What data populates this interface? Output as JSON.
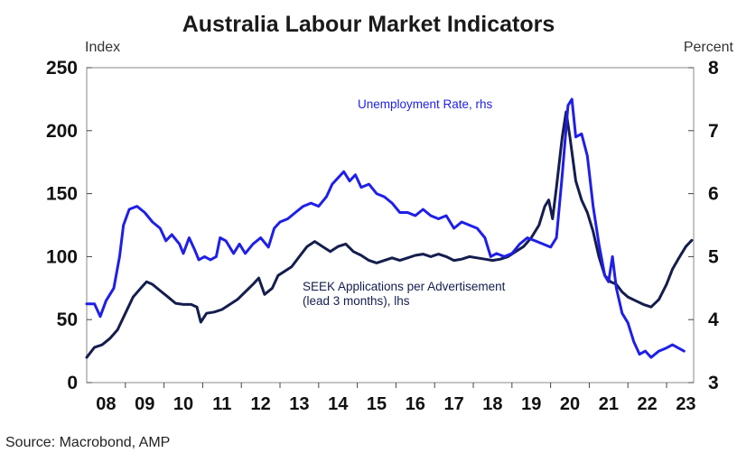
{
  "chart_data": {
    "type": "line",
    "title": "Australia Labour Market Indicators",
    "ylabel_left": "Index",
    "ylabel_right": "Percent",
    "ylim_left": [
      0,
      250
    ],
    "ylim_right": [
      3,
      8
    ],
    "yticks_left": [
      "0",
      "50",
      "100",
      "150",
      "200",
      "250"
    ],
    "yticks_right": [
      "3",
      "4",
      "5",
      "6",
      "7",
      "8"
    ],
    "xlim": [
      2008.0,
      2023.7
    ],
    "xticks": [
      "08",
      "09",
      "10",
      "11",
      "12",
      "13",
      "14",
      "15",
      "16",
      "17",
      "18",
      "19",
      "20",
      "21",
      "22",
      "23"
    ],
    "series": [
      {
        "name": "Unemployment Rate, rhs",
        "axis": "right",
        "color": "#1f1fe8",
        "points": [
          [
            2008.0,
            4.25
          ],
          [
            2008.2,
            4.25
          ],
          [
            2008.35,
            4.05
          ],
          [
            2008.5,
            4.3
          ],
          [
            2008.7,
            4.5
          ],
          [
            2008.85,
            5.0
          ],
          [
            2008.95,
            5.5
          ],
          [
            2009.1,
            5.75
          ],
          [
            2009.3,
            5.8
          ],
          [
            2009.5,
            5.7
          ],
          [
            2009.7,
            5.55
          ],
          [
            2009.9,
            5.45
          ],
          [
            2010.05,
            5.25
          ],
          [
            2010.2,
            5.35
          ],
          [
            2010.4,
            5.2
          ],
          [
            2010.5,
            5.05
          ],
          [
            2010.65,
            5.3
          ],
          [
            2010.8,
            5.1
          ],
          [
            2010.9,
            4.95
          ],
          [
            2011.05,
            5.0
          ],
          [
            2011.2,
            4.95
          ],
          [
            2011.35,
            5.0
          ],
          [
            2011.45,
            5.3
          ],
          [
            2011.6,
            5.25
          ],
          [
            2011.8,
            5.05
          ],
          [
            2011.95,
            5.2
          ],
          [
            2012.1,
            5.05
          ],
          [
            2012.3,
            5.2
          ],
          [
            2012.5,
            5.3
          ],
          [
            2012.7,
            5.15
          ],
          [
            2012.85,
            5.45
          ],
          [
            2013.0,
            5.55
          ],
          [
            2013.2,
            5.6
          ],
          [
            2013.4,
            5.7
          ],
          [
            2013.6,
            5.8
          ],
          [
            2013.8,
            5.85
          ],
          [
            2014.0,
            5.8
          ],
          [
            2014.2,
            5.95
          ],
          [
            2014.35,
            6.15
          ],
          [
            2014.5,
            6.25
          ],
          [
            2014.65,
            6.35
          ],
          [
            2014.8,
            6.2
          ],
          [
            2014.95,
            6.3
          ],
          [
            2015.1,
            6.1
          ],
          [
            2015.3,
            6.15
          ],
          [
            2015.5,
            6.0
          ],
          [
            2015.7,
            5.95
          ],
          [
            2015.9,
            5.85
          ],
          [
            2016.1,
            5.7
          ],
          [
            2016.3,
            5.7
          ],
          [
            2016.5,
            5.65
          ],
          [
            2016.7,
            5.75
          ],
          [
            2016.9,
            5.65
          ],
          [
            2017.1,
            5.6
          ],
          [
            2017.3,
            5.65
          ],
          [
            2017.5,
            5.45
          ],
          [
            2017.7,
            5.55
          ],
          [
            2017.9,
            5.5
          ],
          [
            2018.1,
            5.45
          ],
          [
            2018.3,
            5.3
          ],
          [
            2018.45,
            5.0
          ],
          [
            2018.6,
            5.05
          ],
          [
            2018.8,
            5.0
          ],
          [
            2019.0,
            5.05
          ],
          [
            2019.2,
            5.2
          ],
          [
            2019.4,
            5.3
          ],
          [
            2019.6,
            5.25
          ],
          [
            2019.8,
            5.2
          ],
          [
            2020.0,
            5.15
          ],
          [
            2020.15,
            5.3
          ],
          [
            2020.3,
            6.3
          ],
          [
            2020.45,
            7.4
          ],
          [
            2020.55,
            7.5
          ],
          [
            2020.65,
            6.9
          ],
          [
            2020.8,
            6.95
          ],
          [
            2020.95,
            6.6
          ],
          [
            2021.1,
            5.8
          ],
          [
            2021.25,
            5.2
          ],
          [
            2021.4,
            4.7
          ],
          [
            2021.5,
            4.6
          ],
          [
            2021.6,
            5.0
          ],
          [
            2021.7,
            4.5
          ],
          [
            2021.85,
            4.1
          ],
          [
            2022.0,
            3.95
          ],
          [
            2022.15,
            3.65
          ],
          [
            2022.3,
            3.45
          ],
          [
            2022.45,
            3.5
          ],
          [
            2022.6,
            3.4
          ],
          [
            2022.8,
            3.5
          ],
          [
            2023.0,
            3.55
          ],
          [
            2023.15,
            3.6
          ],
          [
            2023.3,
            3.55
          ],
          [
            2023.45,
            3.5
          ]
        ]
      },
      {
        "name": "SEEK Applications per Advertisement (lead 3 months), lhs",
        "axis": "left",
        "color": "#141d4d",
        "points": [
          [
            2008.0,
            20
          ],
          [
            2008.2,
            28
          ],
          [
            2008.4,
            30
          ],
          [
            2008.6,
            35
          ],
          [
            2008.8,
            42
          ],
          [
            2009.0,
            55
          ],
          [
            2009.2,
            68
          ],
          [
            2009.4,
            75
          ],
          [
            2009.55,
            80
          ],
          [
            2009.7,
            78
          ],
          [
            2009.9,
            73
          ],
          [
            2010.1,
            68
          ],
          [
            2010.3,
            63
          ],
          [
            2010.5,
            62
          ],
          [
            2010.7,
            62
          ],
          [
            2010.85,
            60
          ],
          [
            2010.95,
            48
          ],
          [
            2011.1,
            55
          ],
          [
            2011.3,
            56
          ],
          [
            2011.5,
            58
          ],
          [
            2011.7,
            62
          ],
          [
            2011.9,
            66
          ],
          [
            2012.1,
            72
          ],
          [
            2012.3,
            78
          ],
          [
            2012.45,
            83
          ],
          [
            2012.6,
            70
          ],
          [
            2012.8,
            75
          ],
          [
            2012.95,
            85
          ],
          [
            2013.1,
            88
          ],
          [
            2013.3,
            92
          ],
          [
            2013.5,
            100
          ],
          [
            2013.7,
            108
          ],
          [
            2013.9,
            112
          ],
          [
            2014.1,
            108
          ],
          [
            2014.3,
            104
          ],
          [
            2014.5,
            108
          ],
          [
            2014.7,
            110
          ],
          [
            2014.9,
            104
          ],
          [
            2015.1,
            101
          ],
          [
            2015.3,
            97
          ],
          [
            2015.5,
            95
          ],
          [
            2015.7,
            97
          ],
          [
            2015.9,
            99
          ],
          [
            2016.1,
            97
          ],
          [
            2016.3,
            99
          ],
          [
            2016.5,
            101
          ],
          [
            2016.7,
            102
          ],
          [
            2016.9,
            100
          ],
          [
            2017.1,
            102
          ],
          [
            2017.3,
            100
          ],
          [
            2017.5,
            97
          ],
          [
            2017.7,
            98
          ],
          [
            2017.9,
            100
          ],
          [
            2018.1,
            99
          ],
          [
            2018.3,
            98
          ],
          [
            2018.5,
            97
          ],
          [
            2018.7,
            98
          ],
          [
            2018.9,
            100
          ],
          [
            2019.1,
            104
          ],
          [
            2019.3,
            108
          ],
          [
            2019.5,
            115
          ],
          [
            2019.7,
            125
          ],
          [
            2019.85,
            140
          ],
          [
            2019.95,
            145
          ],
          [
            2020.05,
            130
          ],
          [
            2020.15,
            155
          ],
          [
            2020.3,
            195
          ],
          [
            2020.4,
            215
          ],
          [
            2020.5,
            195
          ],
          [
            2020.65,
            160
          ],
          [
            2020.8,
            145
          ],
          [
            2020.95,
            135
          ],
          [
            2021.1,
            120
          ],
          [
            2021.25,
            100
          ],
          [
            2021.4,
            85
          ],
          [
            2021.55,
            80
          ],
          [
            2021.7,
            78
          ],
          [
            2021.85,
            72
          ],
          [
            2022.0,
            68
          ],
          [
            2022.2,
            65
          ],
          [
            2022.4,
            62
          ],
          [
            2022.6,
            60
          ],
          [
            2022.8,
            66
          ],
          [
            2023.0,
            78
          ],
          [
            2023.15,
            90
          ],
          [
            2023.3,
            98
          ],
          [
            2023.5,
            108
          ],
          [
            2023.65,
            113
          ]
        ]
      }
    ],
    "annotations": [
      {
        "text": "Unemployment Rate, rhs",
        "series": 0
      },
      {
        "text": "SEEK Applications per Advertisement",
        "series": 1
      },
      {
        "text": "(lead 3 months), lhs",
        "series": 1
      }
    ]
  },
  "source": "Source: Macrobond, AMP"
}
